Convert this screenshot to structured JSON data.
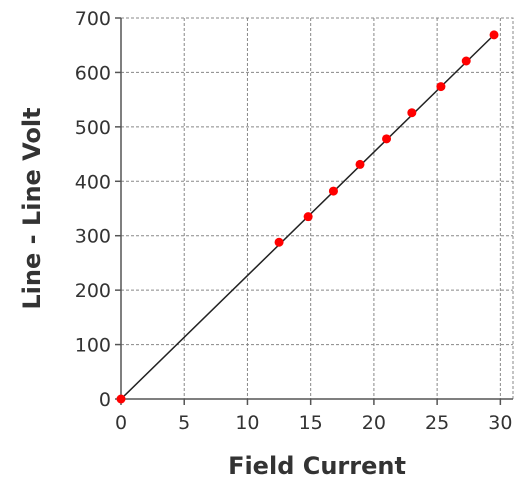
{
  "chart_data": {
    "type": "scatter",
    "title": "",
    "xlabel": "Field Current",
    "ylabel": "Line - Line Volt",
    "xlim": [
      0,
      31
    ],
    "ylim": [
      0,
      700
    ],
    "x_ticks": [
      0,
      5,
      10,
      15,
      20,
      25,
      30
    ],
    "y_ticks": [
      0,
      100,
      200,
      300,
      400,
      500,
      600,
      700
    ],
    "grid": true,
    "legend": "none",
    "colors": {
      "points": "#ff0000",
      "line": "#222222",
      "grid": "#888888",
      "axis": "#555555"
    },
    "series": [
      {
        "type": "scatter",
        "x": [
          0.0,
          12.5,
          14.8,
          16.8,
          18.9,
          21.0,
          23.0,
          25.3,
          27.3,
          29.5
        ],
        "y": [
          0,
          288,
          335,
          382,
          431,
          478,
          526,
          574,
          621,
          669
        ]
      },
      {
        "type": "line",
        "x": [
          0,
          29.5
        ],
        "y": [
          0,
          669
        ]
      }
    ]
  }
}
